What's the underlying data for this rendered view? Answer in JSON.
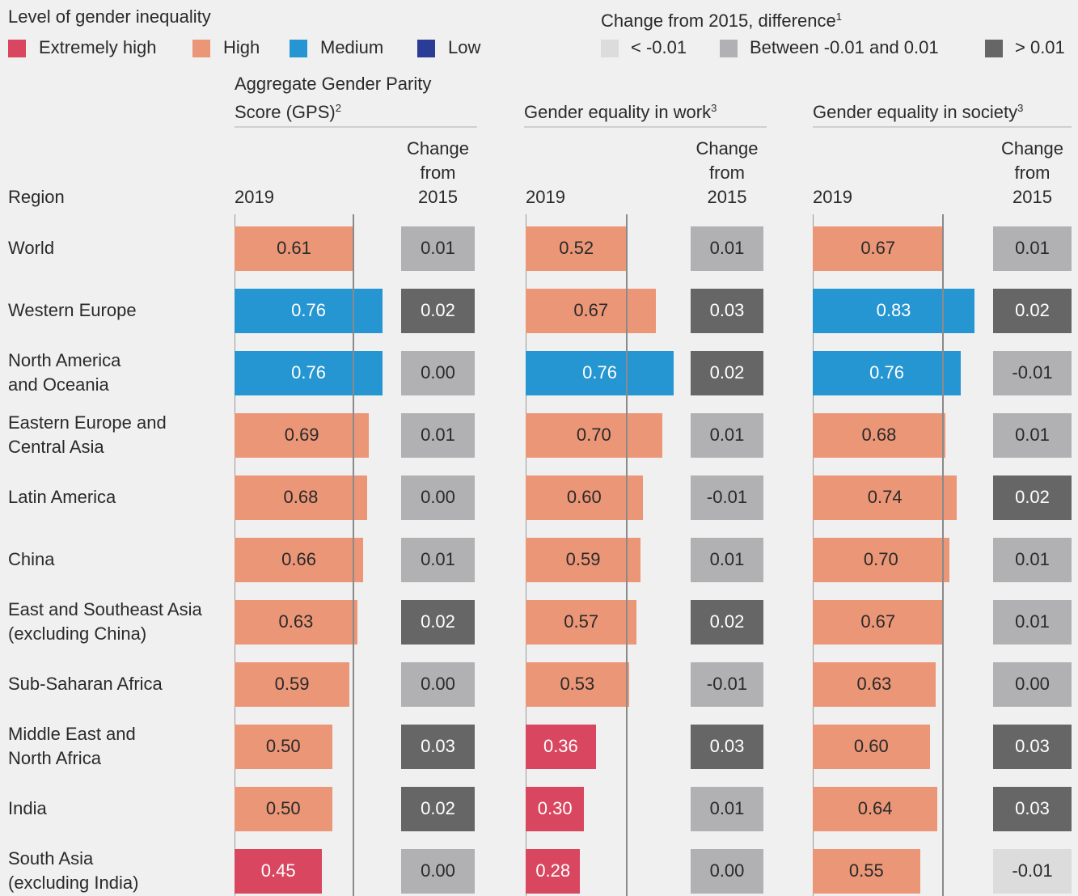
{
  "chart_data": {
    "type": "bar",
    "level_legend": {
      "title": "Level of gender inequality",
      "items": [
        {
          "name": "Extremely high",
          "color": "#d9465f"
        },
        {
          "name": "High",
          "color": "#eb9677"
        },
        {
          "name": "Medium",
          "color": "#2596d1"
        },
        {
          "name": "Low",
          "color": "#2b3c96"
        }
      ]
    },
    "change_legend": {
      "title": "Change from 2015, difference",
      "footnote": "1",
      "items": [
        {
          "name": "< -0.01",
          "color": "#dcdcdc"
        },
        {
          "name": "Between -0.01 and 0.01",
          "color": "#b1b1b3"
        },
        {
          "name": "> 0.01",
          "color": "#666667"
        }
      ]
    },
    "row_header": "Region",
    "categories": [
      "World",
      "Western Europe",
      "North America\nand Oceania",
      "Eastern Europe and\nCentral Asia",
      "Latin America",
      "China",
      "East and Southeast Asia\n(excluding China)",
      "Sub-Saharan Africa",
      "Middle East and\nNorth Africa",
      "India",
      "South Asia\n(excluding India)"
    ],
    "panels": [
      {
        "title": "Aggregate Gender Parity\nScore (GPS)",
        "footnote": "2",
        "value_header": "2019",
        "change_header": "Change\nfrom\n2015",
        "values": [
          0.61,
          0.76,
          0.76,
          0.69,
          0.68,
          0.66,
          0.63,
          0.59,
          0.5,
          0.5,
          0.45
        ],
        "value_labels": [
          "0.61",
          "0.76",
          "0.76",
          "0.69",
          "0.68",
          "0.66",
          "0.63",
          "0.59",
          "0.50",
          "0.50",
          "0.45"
        ],
        "colors": [
          "#eb9677",
          "#2596d1",
          "#2596d1",
          "#eb9677",
          "#eb9677",
          "#eb9677",
          "#eb9677",
          "#eb9677",
          "#eb9677",
          "#eb9677",
          "#d9465f"
        ],
        "change": [
          0.01,
          0.02,
          0,
          0.01,
          0,
          0.01,
          0.02,
          0,
          0.03,
          0.02,
          0
        ],
        "change_labels": [
          "0.01",
          "0.02",
          "0.00",
          "0.01",
          "0.00",
          "0.01",
          "0.02",
          "0.00",
          "0.03",
          "0.02",
          "0.00"
        ],
        "change_colors": [
          "#b1b1b3",
          "#666667",
          "#b1b1b3",
          "#b1b1b3",
          "#b1b1b3",
          "#b1b1b3",
          "#666667",
          "#b1b1b3",
          "#666667",
          "#666667",
          "#b1b1b3"
        ]
      },
      {
        "title": "Gender equality in work",
        "footnote": "3",
        "value_header": "2019",
        "change_header": "Change\nfrom\n2015",
        "values": [
          0.52,
          0.67,
          0.76,
          0.7,
          0.6,
          0.59,
          0.57,
          0.53,
          0.36,
          0.3,
          0.28
        ],
        "value_labels": [
          "0.52",
          "0.67",
          "0.76",
          "0.70",
          "0.60",
          "0.59",
          "0.57",
          "0.53",
          "0.36",
          "0.30",
          "0.28"
        ],
        "colors": [
          "#eb9677",
          "#eb9677",
          "#2596d1",
          "#eb9677",
          "#eb9677",
          "#eb9677",
          "#eb9677",
          "#eb9677",
          "#d9465f",
          "#d9465f",
          "#d9465f"
        ],
        "change": [
          0.01,
          0.03,
          0.02,
          0.01,
          -0.01,
          0.01,
          0.02,
          -0.01,
          0.03,
          0.01,
          0
        ],
        "change_labels": [
          "0.01",
          "0.03",
          "0.02",
          "0.01",
          "-0.01",
          "0.01",
          "0.02",
          "-0.01",
          "0.03",
          "0.01",
          "0.00"
        ],
        "change_colors": [
          "#b1b1b3",
          "#666667",
          "#666667",
          "#b1b1b3",
          "#b1b1b3",
          "#b1b1b3",
          "#666667",
          "#b1b1b3",
          "#666667",
          "#b1b1b3",
          "#b1b1b3"
        ]
      },
      {
        "title": "Gender equality in society",
        "footnote": "3",
        "value_header": "2019",
        "change_header": "Change\nfrom\n2015",
        "values": [
          0.67,
          0.83,
          0.76,
          0.68,
          0.74,
          0.7,
          0.67,
          0.63,
          0.6,
          0.64,
          0.55
        ],
        "value_labels": [
          "0.67",
          "0.83",
          "0.76",
          "0.68",
          "0.74",
          "0.70",
          "0.67",
          "0.63",
          "0.60",
          "0.64",
          "0.55"
        ],
        "colors": [
          "#eb9677",
          "#2596d1",
          "#2596d1",
          "#eb9677",
          "#eb9677",
          "#eb9677",
          "#eb9677",
          "#eb9677",
          "#eb9677",
          "#eb9677",
          "#eb9677"
        ],
        "change": [
          0.01,
          0.02,
          -0.01,
          0.01,
          0.02,
          0.01,
          0.01,
          0,
          0.03,
          0.03,
          -0.01
        ],
        "change_labels": [
          "0.01",
          "0.02",
          "-0.01",
          "0.01",
          "0.02",
          "0.01",
          "0.01",
          "0.00",
          "0.03",
          "0.03",
          "-0.01"
        ],
        "change_colors": [
          "#b1b1b3",
          "#666667",
          "#b1b1b3",
          "#b1b1b3",
          "#666667",
          "#b1b1b3",
          "#b1b1b3",
          "#b1b1b3",
          "#666667",
          "#666667",
          "#dcdcdc"
        ]
      }
    ]
  }
}
